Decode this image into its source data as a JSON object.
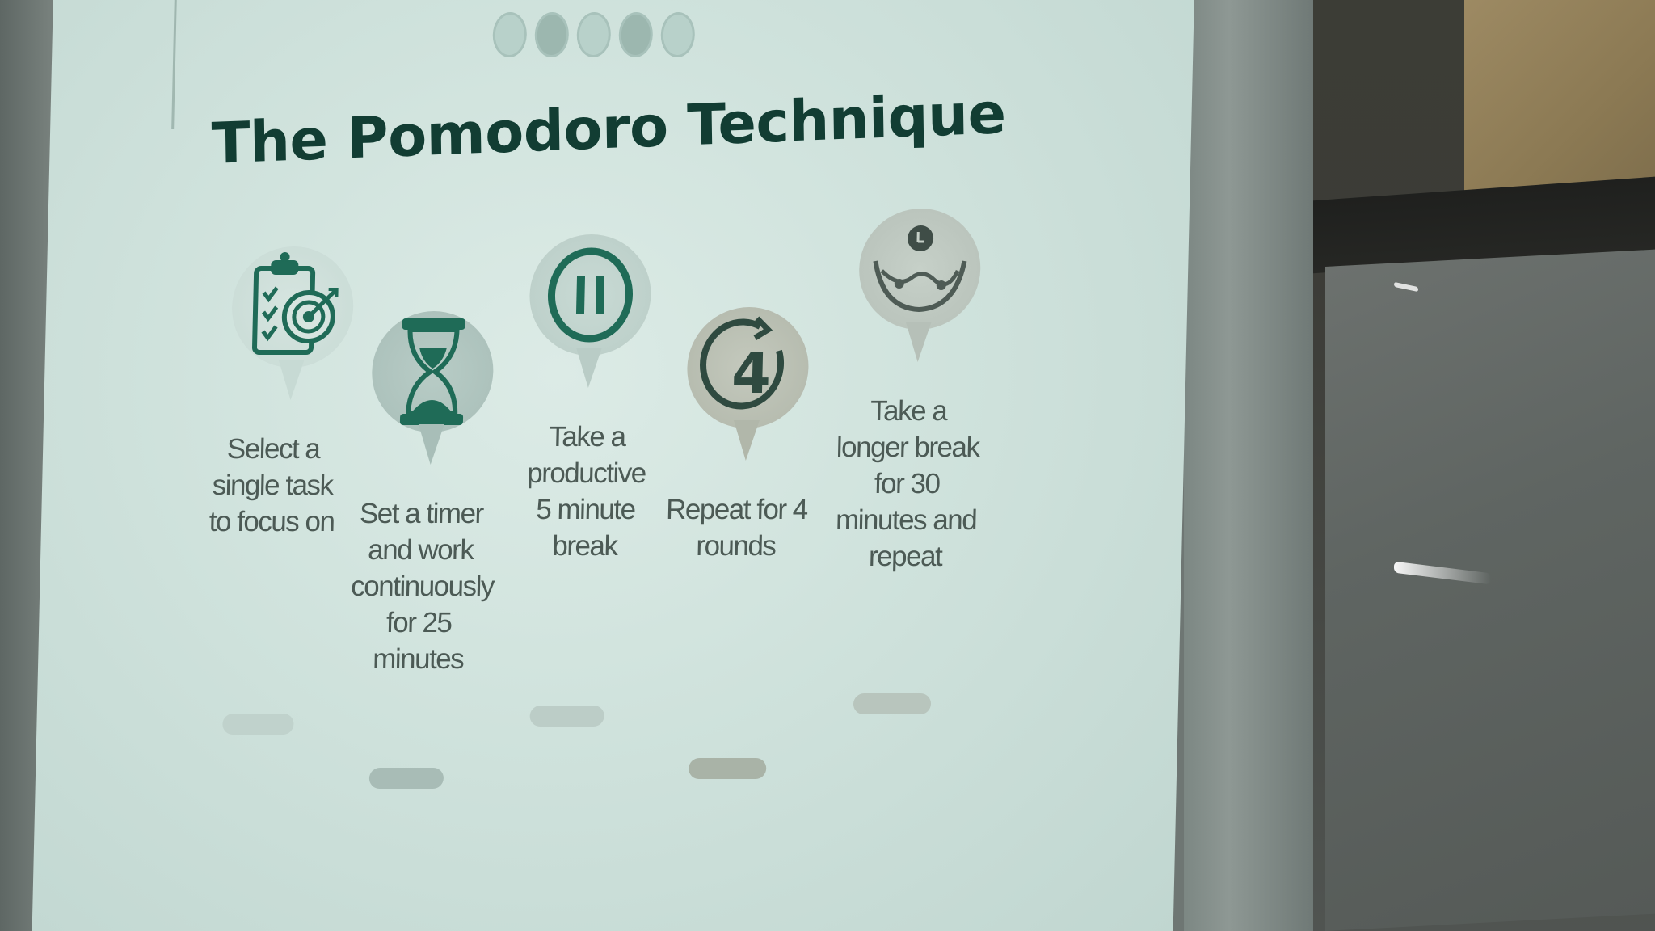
{
  "slide": {
    "title": "The Pomodoro Technique",
    "progress_dots": 5,
    "steps": [
      {
        "icon": "clipboard-target-icon",
        "label": "Select a single task to focus on"
      },
      {
        "icon": "hourglass-icon",
        "label": "Set a timer and work continuously for 25 minutes"
      },
      {
        "icon": "pause-icon",
        "label": "Take a productive 5 minute break"
      },
      {
        "icon": "repeat-4-icon",
        "label": "Repeat for 4 rounds"
      },
      {
        "icon": "hammock-icon",
        "label": "Take a longer break for 30 minutes and repeat"
      }
    ],
    "repeat_number": "4"
  },
  "colors": {
    "title": "#123d33",
    "icon": "#1f6b57",
    "slide_background": "#cfe2dc",
    "label": "#4c5a55"
  }
}
